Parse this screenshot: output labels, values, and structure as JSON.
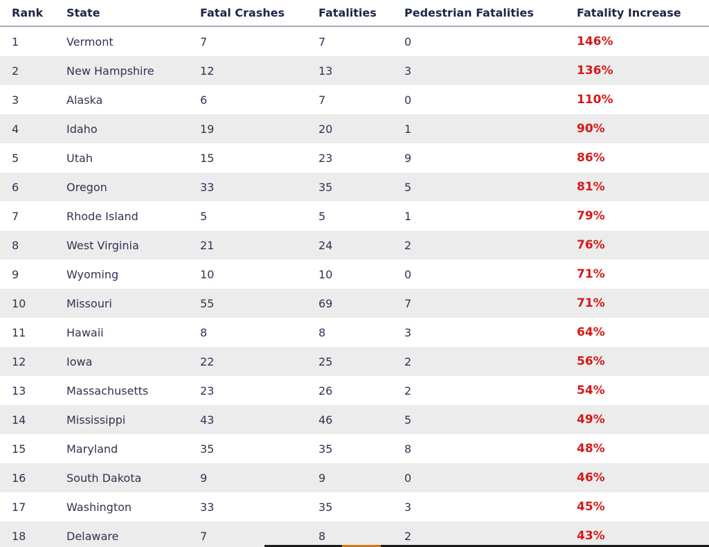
{
  "table": {
    "headers": [
      "Rank",
      "State",
      "Fatal Crashes",
      "Fatalities",
      "Pedestrian Fatalities",
      "Fatality Increase"
    ],
    "rows": [
      [
        "1",
        "Vermont",
        "7",
        "7",
        "0",
        "146%"
      ],
      [
        "2",
        "New Hampshire",
        "12",
        "13",
        "3",
        "136%"
      ],
      [
        "3",
        "Alaska",
        "6",
        "7",
        "0",
        "110%"
      ],
      [
        "4",
        "Idaho",
        "19",
        "20",
        "1",
        "90%"
      ],
      [
        "5",
        "Utah",
        "15",
        "23",
        "9",
        "86%"
      ],
      [
        "6",
        "Oregon",
        "33",
        "35",
        "5",
        "81%"
      ],
      [
        "7",
        "Rhode Island",
        "5",
        "5",
        "1",
        "79%"
      ],
      [
        "8",
        "West Virginia",
        "21",
        "24",
        "2",
        "76%"
      ],
      [
        "9",
        "Wyoming",
        "10",
        "10",
        "0",
        "71%"
      ],
      [
        "10",
        "Missouri",
        "55",
        "69",
        "7",
        "71%"
      ],
      [
        "11",
        "Hawaii",
        "8",
        "8",
        "3",
        "64%"
      ],
      [
        "12",
        "Iowa",
        "22",
        "25",
        "2",
        "56%"
      ],
      [
        "13",
        "Massachusetts",
        "23",
        "26",
        "2",
        "54%"
      ],
      [
        "14",
        "Mississippi",
        "43",
        "46",
        "5",
        "49%"
      ],
      [
        "15",
        "Maryland",
        "35",
        "35",
        "8",
        "48%"
      ],
      [
        "16",
        "South Dakota",
        "9",
        "9",
        "0",
        "46%"
      ],
      [
        "17",
        "Washington",
        "33",
        "35",
        "3",
        "45%"
      ],
      [
        "18",
        "Delaware",
        "7",
        "8",
        "2",
        "43%"
      ]
    ]
  },
  "colors": {
    "header_text": "#1f2547",
    "body_text": "#2e3352",
    "increase_text": "#d41919",
    "stripe": "#ececec"
  }
}
